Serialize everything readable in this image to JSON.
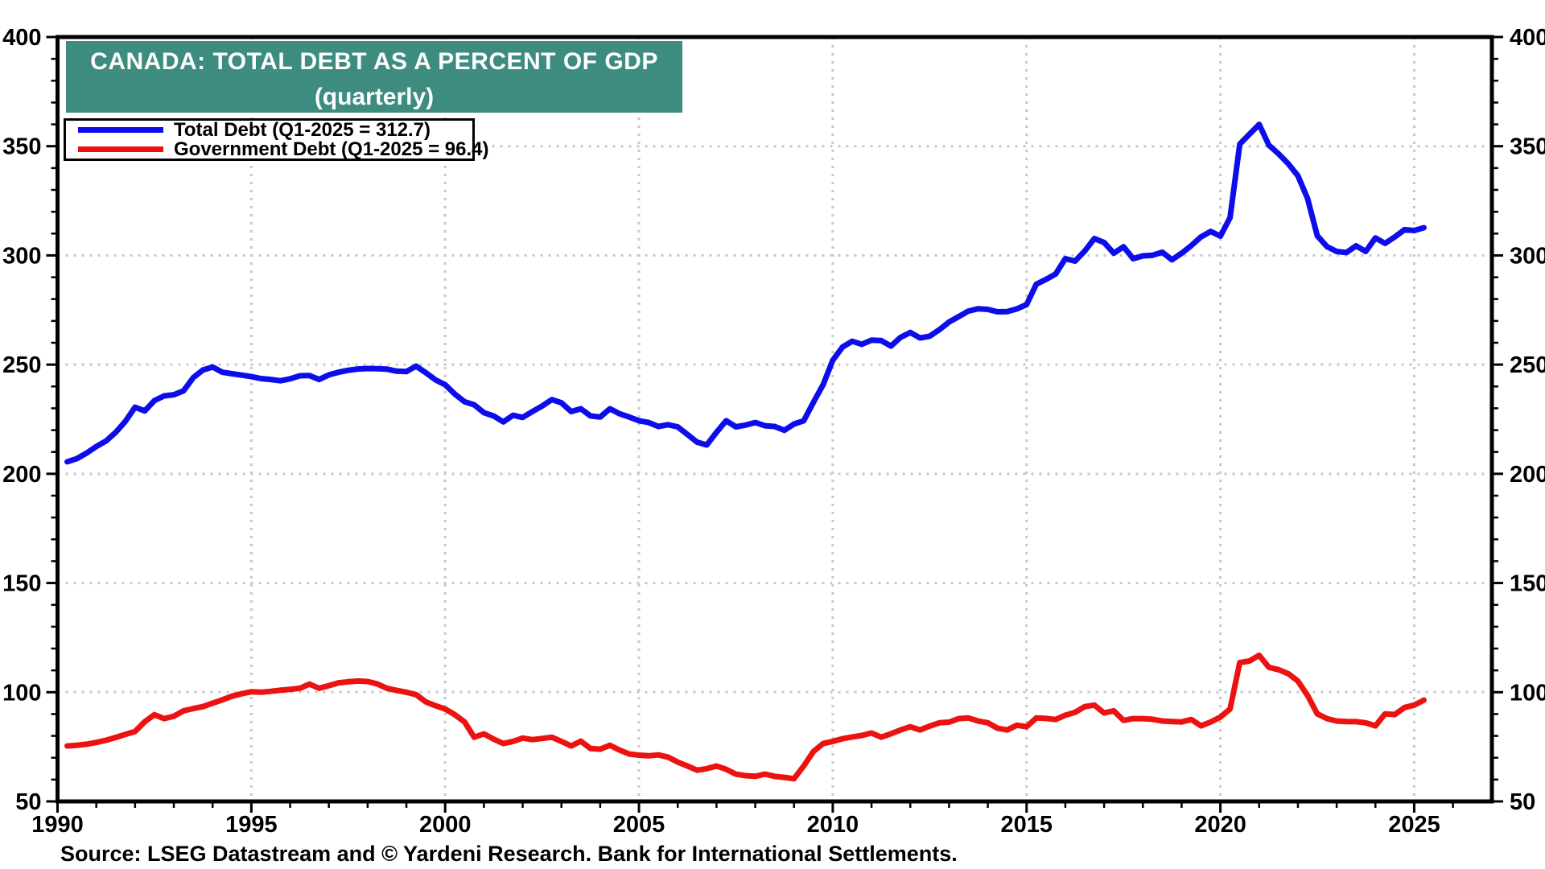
{
  "chart": {
    "title_line1": "CANADA: TOTAL DEBT AS A PERCENT OF GDP",
    "title_line2": "(quarterly)"
  },
  "legend": {
    "entries": [
      {
        "label": "Total Debt (Q1-2025 = 312.7)",
        "color": "#0d0dec"
      },
      {
        "label": "Government Debt (Q1-2025 = 96.4)",
        "color": "#ec1212"
      }
    ]
  },
  "source": "Source: LSEG Datastream and © Yardeni Research. Bank for International Settlements.",
  "chart_data": {
    "type": "line",
    "title": "CANADA: TOTAL DEBT AS A PERCENT OF GDP",
    "subtitle": "(quarterly)",
    "frequency": "quarterly",
    "x_start": 1990.25,
    "x_step": 0.25,
    "x_axis": {
      "min": 1990,
      "max": 2027,
      "major_ticks": [
        1990,
        1995,
        2000,
        2005,
        2010,
        2015,
        2020,
        2025
      ],
      "minor_step": 1
    },
    "y_axis": {
      "min": 50,
      "max": 400,
      "major_step": 50,
      "minor_step": 10,
      "gridlines": [
        100,
        150,
        200,
        250,
        300,
        350
      ],
      "labels": [
        400,
        350,
        300,
        250,
        200,
        150,
        100,
        50
      ]
    },
    "legend_position": "top-left",
    "grid": "dotted",
    "colors": {
      "grid": "#c8c8c8",
      "frame": "#000000"
    },
    "series": [
      {
        "name": "Total Debt (Q1-2025 = 312.7)",
        "color": "#0d0dec",
        "last_value": 312.7,
        "values": [
          205.5,
          207.0,
          209.5,
          212.5,
          215.0,
          219.0,
          224.0,
          230.5,
          228.8,
          233.5,
          235.7,
          236.2,
          238.0,
          244.0,
          247.5,
          248.9,
          246.5,
          245.8,
          245.2,
          244.5,
          243.6,
          243.2,
          242.6,
          243.5,
          244.9,
          245.0,
          243.2,
          245.3,
          246.5,
          247.4,
          248.0,
          248.2,
          248.1,
          247.9,
          247.0,
          246.8,
          249.3,
          246.3,
          243.0,
          240.8,
          236.5,
          233.0,
          231.6,
          228.0,
          226.5,
          223.8,
          226.8,
          225.8,
          228.5,
          231.0,
          234.0,
          232.5,
          228.5,
          229.8,
          226.5,
          226.0,
          229.8,
          227.5,
          226.0,
          224.3,
          223.5,
          221.7,
          222.5,
          221.5,
          218.0,
          214.5,
          213.2,
          219.0,
          224.3,
          221.5,
          222.3,
          223.5,
          222.0,
          221.7,
          219.9,
          222.8,
          224.3,
          232.7,
          240.8,
          252.0,
          258.0,
          260.7,
          259.3,
          261.2,
          261.0,
          258.5,
          262.5,
          264.7,
          262.2,
          263.0,
          266.0,
          269.5,
          272.0,
          274.5,
          275.6,
          275.3,
          274.2,
          274.3,
          275.5,
          277.5,
          286.8,
          289.0,
          291.5,
          298.5,
          297.4,
          302.0,
          307.7,
          305.9,
          301.0,
          304.0,
          298.5,
          299.8,
          300.1,
          301.5,
          298.0,
          301.0,
          304.5,
          308.5,
          311.0,
          308.8,
          317.3,
          351.0,
          355.5,
          360.0,
          350.5,
          346.5,
          342.0,
          336.5,
          326.0,
          309.0,
          304.0,
          301.8,
          301.3,
          304.4,
          301.8,
          308.0,
          305.5,
          308.5,
          311.8,
          311.4,
          312.7
        ]
      },
      {
        "name": "Government Debt (Q1-2025 = 96.4)",
        "color": "#ec1212",
        "last_value": 96.4,
        "values": [
          75.4,
          75.7,
          76.2,
          77.0,
          78.0,
          79.3,
          80.7,
          82.0,
          86.5,
          89.7,
          87.9,
          89.0,
          91.5,
          92.5,
          93.4,
          95.0,
          96.5,
          98.2,
          99.3,
          100.2,
          100.0,
          100.4,
          100.9,
          101.3,
          101.8,
          103.7,
          101.8,
          103.0,
          104.3,
          104.8,
          105.1,
          104.9,
          103.8,
          101.8,
          100.8,
          100.0,
          98.9,
          95.6,
          93.8,
          92.3,
          89.7,
          86.4,
          79.4,
          80.9,
          78.5,
          76.5,
          77.5,
          79.0,
          78.3,
          78.8,
          79.4,
          77.5,
          75.4,
          77.6,
          74.2,
          73.9,
          75.7,
          73.5,
          71.7,
          71.2,
          70.9,
          71.3,
          70.3,
          68.0,
          66.2,
          64.3,
          65.0,
          66.2,
          64.7,
          62.5,
          61.8,
          61.5,
          62.5,
          61.5,
          61.0,
          60.4,
          66.2,
          72.8,
          76.5,
          77.5,
          78.7,
          79.5,
          80.2,
          81.3,
          79.4,
          81.0,
          82.7,
          84.2,
          82.7,
          84.5,
          86.0,
          86.3,
          87.9,
          88.2,
          86.8,
          86.0,
          83.5,
          82.7,
          84.9,
          84.2,
          88.2,
          88.0,
          87.5,
          89.5,
          90.8,
          93.4,
          94.1,
          90.5,
          91.5,
          87.1,
          87.9,
          87.9,
          87.6,
          86.8,
          86.6,
          86.4,
          87.5,
          84.6,
          86.4,
          88.6,
          92.3,
          113.6,
          114.3,
          116.9,
          111.4,
          110.3,
          108.5,
          105.1,
          98.5,
          90.1,
          87.9,
          86.8,
          86.6,
          86.5,
          86.0,
          84.6,
          90.1,
          89.8,
          93.0,
          94.1,
          96.4
        ]
      }
    ]
  }
}
